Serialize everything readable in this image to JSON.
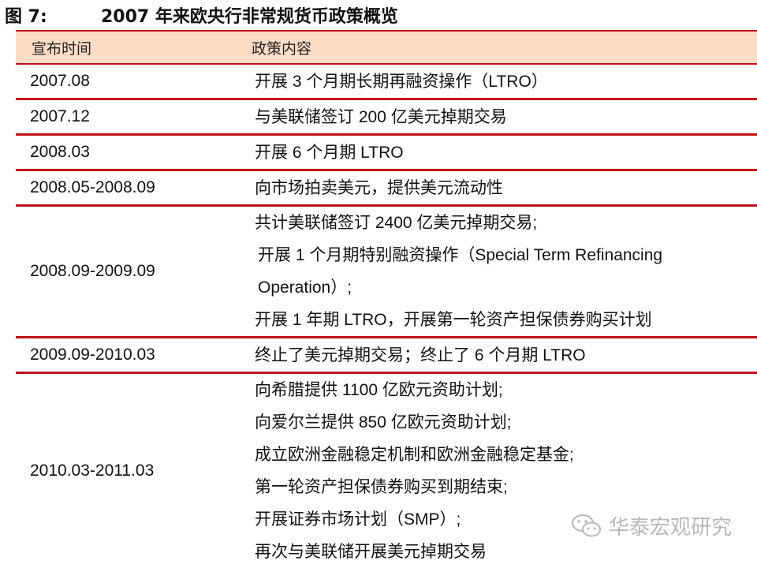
{
  "figure": {
    "label": "图 7:",
    "title": "2007 年来欧央行非常规货币政策概览"
  },
  "table": {
    "headers": [
      "宣布时间",
      "政策内容"
    ],
    "rows": [
      {
        "date": "2007.08",
        "items": [
          "开展 3 个月期长期再融资操作（LTRO）"
        ]
      },
      {
        "date": "2007.12",
        "items": [
          "与美联储签订 200 亿美元掉期交易"
        ]
      },
      {
        "date": "2008.03",
        "items": [
          "开展 6 个月期 LTRO"
        ]
      },
      {
        "date": "2008.05-2008.09",
        "items": [
          "向市场拍卖美元，提供美元流动性"
        ]
      },
      {
        "date": "2008.09-2009.09",
        "items": [
          "共计美联储签订 2400 亿美元掉期交易;",
          "开展 1 个月期特别融资操作（Special Term Refinancing",
          "Operation）;",
          "开展 1 年期 LTRO，开展第一轮资产担保债券购买计划"
        ]
      },
      {
        "date": "2009.09-2010.03",
        "items": [
          "终止了美元掉期交易；终止了 6 个月期 LTRO"
        ]
      },
      {
        "date": "2010.03-2011.03",
        "items": [
          "向希腊提供 1100 亿欧元资助计划;",
          "向爱尔兰提供 850 亿欧元资助计划;",
          "成立欧洲金融稳定机制和欧洲金融稳定基金;",
          "第一轮资产担保债券购买到期结束;",
          "开展证券市场计划（SMP）;",
          "再次与美联储开展美元掉期交易"
        ]
      }
    ]
  },
  "watermark": {
    "text": "华泰宏观研究",
    "icon": "wechat-logo-icon"
  },
  "colors": {
    "rule": "#c0101a",
    "header_bg": "#fadcc4",
    "watermark": "#b8b8b8"
  }
}
